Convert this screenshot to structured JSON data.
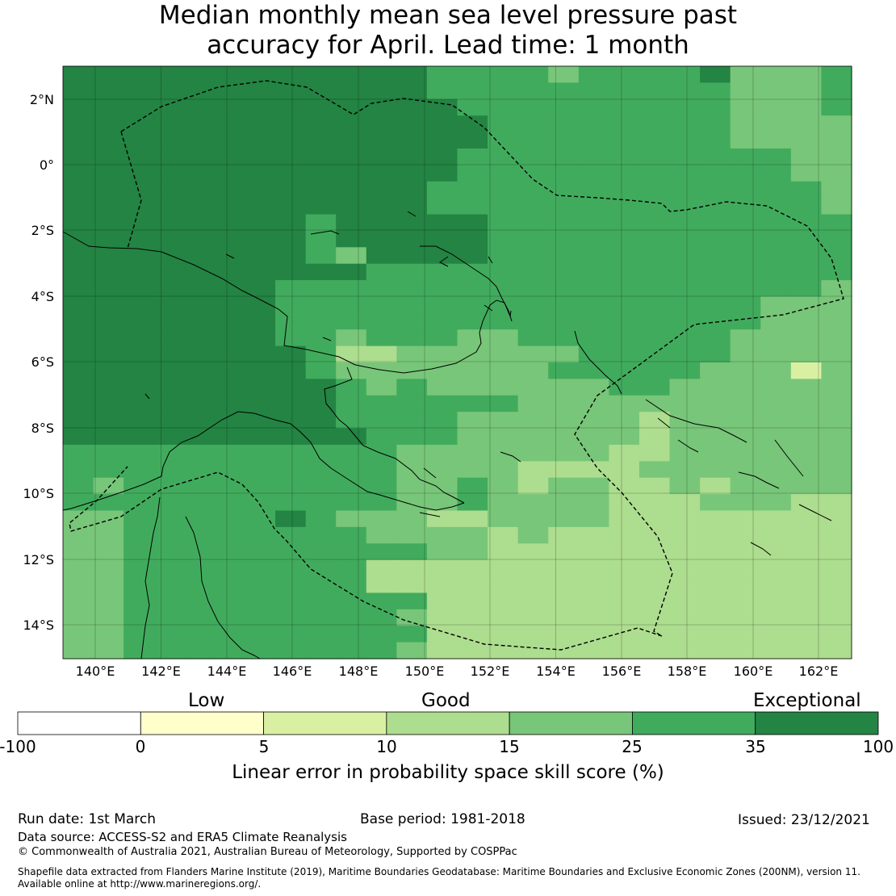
{
  "title_line1": "Median monthly mean sea level pressure past",
  "title_line2": "accuracy for April. Lead time: 1 month",
  "map": {
    "lat_labels": [
      "2°N",
      "0°",
      "2°S",
      "4°S",
      "6°S",
      "8°S",
      "10°S",
      "12°S",
      "14°S"
    ],
    "lon_labels": [
      "140°E",
      "142°E",
      "144°E",
      "146°E",
      "148°E",
      "150°E",
      "152°E",
      "154°E",
      "156°E",
      "158°E",
      "160°E",
      "162°E"
    ],
    "lon_range": [
      139,
      163
    ],
    "lat_range": [
      -15,
      3
    ],
    "cell_colors": [
      "#ffffcc",
      "#d9f0a3",
      "#addd8e",
      "#78c679",
      "#41ab5d",
      "#238443"
    ],
    "grid_data": [
      "55555555555544443444453334",
      "55555555555544444444443334",
      "55555555555554444444443334",
      "55555555555555444444443333",
      "55555555555555444444443333",
      "55555555555554444444444433",
      "55555555555554444444444433",
      "55555555555544444444444443",
      "55555555555544444444444443",
      "55555555455555444444444444",
      "55555555455555444444444444",
      "55555555435555444444444444",
      "55555555554444444444444444",
      "55555554444444444444444443",
      "55555554444444444444444333",
      "55555554444444444444444333",
      "55555554434443344444443333",
      "55555555422333333444443333",
      "55555555433333334444433313",
      "55555555543433333344333333",
      "55555555544444433333333333",
      "55555555544443333332333333",
      "55555555554443333332333333",
      "44444444444333333322333333",
      "44444444444333322223333333",
      "43444444444334323322323333",
      "44444444444334333322233322",
      "33444445433322333322222222",
      "33444444443333232222222222",
      "33444444444433222222222222",
      "33444444442222222222222222",
      "33444444442222222222222222",
      "33444444444422222222222222",
      "33444444444322222222222222",
      "33444444444422222222222222",
      "33444444444322222222222222"
    ]
  },
  "colorbar": {
    "categories": [
      "Low",
      "Good",
      "Exceptional"
    ],
    "tick_labels": [
      "-100",
      "0",
      "5",
      "10",
      "15",
      "25",
      "35",
      "100"
    ],
    "colors": [
      "#ffffff",
      "#ffffcc",
      "#d9f0a3",
      "#addd8e",
      "#78c679",
      "#41ab5d",
      "#238443"
    ],
    "title": "Linear error in probability space skill score (%)"
  },
  "footer": {
    "run_date": "Run date: 1st March",
    "base_period": "Base period: 1981-2018",
    "issued": "Issued: 23/12/2021",
    "data_source": "Data source: ACCESS-S2 and ERA5 Climate Reanalysis",
    "copyright": "© Commonwealth of Australia 2021, Australian Bureau of Meteorology, Supported by COSPPac",
    "shapefile_line1": "Shapefile data extracted from Flanders Marine Institute (2019), Maritime Boundaries Geodatabase: Maritime Boundaries and Exclusive Economic Zones (200NM), version 11.",
    "shapefile_line2": "Available online at http://www.marineregions.org/."
  }
}
